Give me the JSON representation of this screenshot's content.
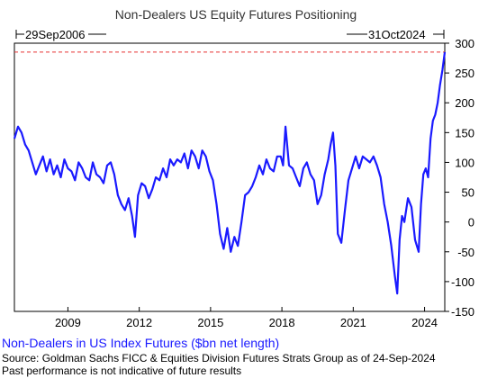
{
  "chart_data": {
    "type": "line",
    "title": "Non-Dealers US Equity Futures Positioning",
    "range_start_label": "29Sep2006",
    "range_end_label": "31Oct2024",
    "x_range": [
      2006.75,
      2024.85
    ],
    "x_ticks": [
      {
        "value": 2009,
        "label": "2009"
      },
      {
        "value": 2012,
        "label": "2012"
      },
      {
        "value": 2015,
        "label": "2015"
      },
      {
        "value": 2018,
        "label": "2018"
      },
      {
        "value": 2021,
        "label": "2021"
      },
      {
        "value": 2024,
        "label": "2024"
      }
    ],
    "ylim": [
      -150,
      300
    ],
    "y_ticks": [
      {
        "value": 300,
        "label": "300"
      },
      {
        "value": 250,
        "label": "250"
      },
      {
        "value": 200,
        "label": "200"
      },
      {
        "value": 150,
        "label": "150"
      },
      {
        "value": 100,
        "label": "100"
      },
      {
        "value": 50,
        "label": "50"
      },
      {
        "value": 0,
        "label": "0"
      },
      {
        "value": -50,
        "label": "-50"
      },
      {
        "value": -100,
        "label": "-100"
      },
      {
        "value": -150,
        "label": "-150"
      }
    ],
    "y_axis_position": "right",
    "grid": false,
    "reference_line": {
      "value": 285,
      "style": "dashed",
      "color": "#e83030"
    },
    "series": [
      {
        "name": "Non-Dealers in US Index Futures ($bn net length)",
        "color": "#1a1aff",
        "x": [
          2006.75,
          2006.9,
          2007.05,
          2007.2,
          2007.35,
          2007.5,
          2007.65,
          2007.8,
          2007.95,
          2008.1,
          2008.25,
          2008.4,
          2008.55,
          2008.7,
          2008.85,
          2009.0,
          2009.15,
          2009.3,
          2009.45,
          2009.6,
          2009.75,
          2009.9,
          2010.05,
          2010.2,
          2010.35,
          2010.5,
          2010.65,
          2010.8,
          2010.95,
          2011.1,
          2011.25,
          2011.4,
          2011.55,
          2011.7,
          2011.82,
          2011.95,
          2012.1,
          2012.25,
          2012.4,
          2012.55,
          2012.7,
          2012.85,
          2013.0,
          2013.15,
          2013.3,
          2013.45,
          2013.6,
          2013.75,
          2013.9,
          2014.05,
          2014.2,
          2014.35,
          2014.5,
          2014.65,
          2014.8,
          2014.95,
          2015.1,
          2015.25,
          2015.4,
          2015.55,
          2015.7,
          2015.85,
          2016.0,
          2016.15,
          2016.3,
          2016.45,
          2016.6,
          2016.75,
          2016.9,
          2017.05,
          2017.2,
          2017.35,
          2017.5,
          2017.65,
          2017.8,
          2017.95,
          2018.05,
          2018.15,
          2018.3,
          2018.45,
          2018.6,
          2018.75,
          2018.9,
          2019.05,
          2019.2,
          2019.35,
          2019.5,
          2019.65,
          2019.8,
          2019.95,
          2020.05,
          2020.15,
          2020.25,
          2020.35,
          2020.5,
          2020.65,
          2020.8,
          2020.95,
          2021.1,
          2021.25,
          2021.4,
          2021.55,
          2021.7,
          2021.85,
          2022.0,
          2022.15,
          2022.3,
          2022.45,
          2022.6,
          2022.75,
          2022.85,
          2022.95,
          2023.05,
          2023.15,
          2023.3,
          2023.45,
          2023.6,
          2023.75,
          2023.85,
          2023.95,
          2024.05,
          2024.15,
          2024.25,
          2024.35,
          2024.45,
          2024.55,
          2024.65,
          2024.75,
          2024.85
        ],
        "y": [
          140,
          160,
          150,
          130,
          120,
          100,
          80,
          95,
          110,
          85,
          105,
          80,
          95,
          75,
          105,
          90,
          85,
          70,
          100,
          90,
          75,
          70,
          100,
          80,
          75,
          65,
          95,
          100,
          80,
          45,
          30,
          20,
          40,
          10,
          -25,
          45,
          65,
          60,
          40,
          55,
          75,
          70,
          90,
          75,
          105,
          95,
          105,
          100,
          115,
          90,
          120,
          110,
          90,
          120,
          110,
          85,
          70,
          30,
          -20,
          -45,
          -10,
          -50,
          -25,
          -40,
          0,
          45,
          50,
          60,
          75,
          95,
          80,
          105,
          90,
          85,
          110,
          110,
          95,
          160,
          95,
          90,
          75,
          60,
          90,
          100,
          80,
          70,
          30,
          45,
          80,
          105,
          130,
          150,
          95,
          -20,
          -35,
          20,
          70,
          90,
          110,
          90,
          110,
          105,
          100,
          110,
          95,
          75,
          30,
          0,
          -40,
          -90,
          -120,
          -30,
          10,
          0,
          40,
          25,
          -30,
          -50,
          30,
          80,
          90,
          75,
          140,
          170,
          180,
          200,
          230,
          255,
          285
        ]
      }
    ]
  },
  "footer": {
    "legend_label": "Non-Dealers in US Index Futures ($bn net length)",
    "source": "Source: Goldman Sachs FICC & Equities Division Futures Strats Group as of 24-Sep-2024",
    "disclaimer": "Past performance is not indicative of future results"
  }
}
